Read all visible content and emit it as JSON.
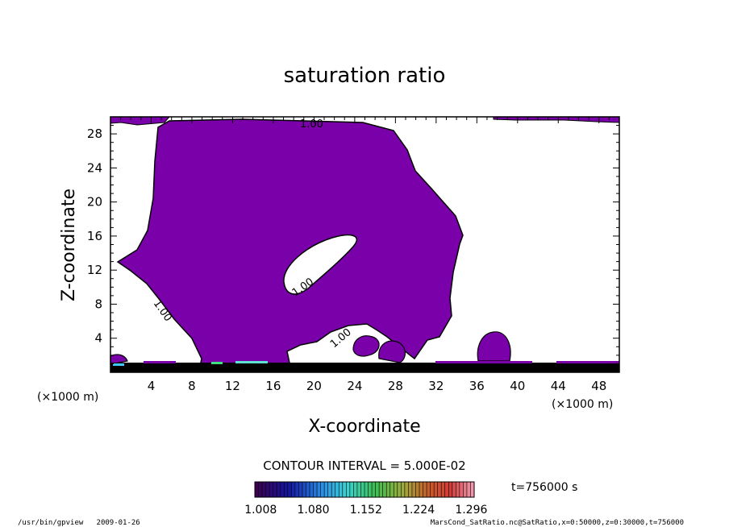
{
  "chart_data": {
    "type": "contour",
    "title": "saturation ratio",
    "xlabel": "X-coordinate",
    "ylabel": "Z-coordinate",
    "x_unit_left": "(×1000 m)",
    "x_unit_right": "(×1000 m)",
    "xlim": [
      0,
      50
    ],
    "ylim": [
      0,
      30
    ],
    "x_ticks": [
      "4",
      "8",
      "12",
      "16",
      "20",
      "24",
      "28",
      "32",
      "36",
      "40",
      "44",
      "48"
    ],
    "y_ticks": [
      "4",
      "8",
      "12",
      "16",
      "20",
      "24",
      "28"
    ],
    "contour_labels": [
      "1.00",
      "1.00",
      "1.00",
      "1.00"
    ],
    "contour_interval_text": "CONTOUR INTERVAL = 5.000E-02",
    "time_text": "t=756000 s",
    "colorbar": {
      "tick_labels": [
        "1.008",
        "1.080",
        "1.152",
        "1.224",
        "1.296"
      ],
      "range": [
        1.0,
        1.3
      ]
    },
    "fill_color": "#7a00aa",
    "footer_left": "/usr/bin/gpview   2009-01-26",
    "footer_right": "MarsCond_SatRatio.nc@SatRatio,x=0:50000,z=0:30000,t=756000"
  }
}
